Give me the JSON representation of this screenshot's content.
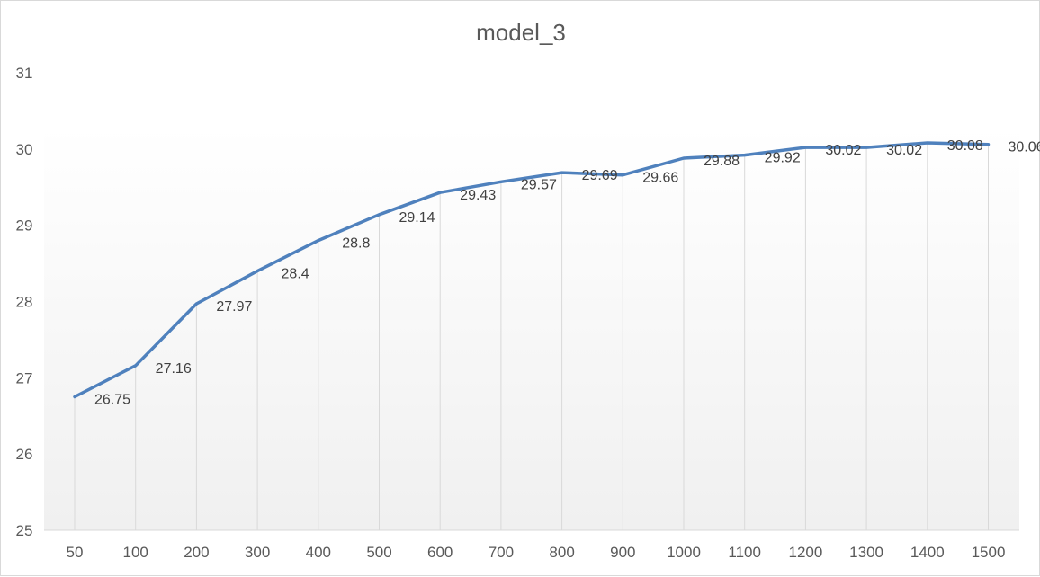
{
  "chart_data": {
    "type": "line",
    "title": "model_3",
    "xlabel": "",
    "ylabel": "",
    "categories": [
      "50",
      "100",
      "200",
      "300",
      "400",
      "500",
      "600",
      "700",
      "800",
      "900",
      "1000",
      "1100",
      "1200",
      "1300",
      "1400",
      "1500"
    ],
    "series": [
      {
        "values": [
          26.75,
          27.16,
          27.97,
          28.4,
          28.8,
          29.14,
          29.43,
          29.57,
          29.69,
          29.66,
          29.88,
          29.92,
          30.02,
          30.02,
          30.08,
          30.06
        ],
        "labels": [
          "26.75",
          "27.16",
          "27.97",
          "28.4",
          "28.8",
          "29.14",
          "29.43",
          "29.57",
          "29.69",
          "29.66",
          "29.88",
          "29.92",
          "30.02",
          "30.02",
          "30.08",
          "30.06"
        ]
      }
    ],
    "yticks": [
      "25",
      "26",
      "27",
      "28",
      "29",
      "30",
      "31"
    ],
    "ylim": [
      25,
      31
    ],
    "grid": "vertical drop lines",
    "legend": "none",
    "colors": {
      "line": "#4f81bd",
      "text": "#595959",
      "grid": "#d9d9d9"
    }
  }
}
